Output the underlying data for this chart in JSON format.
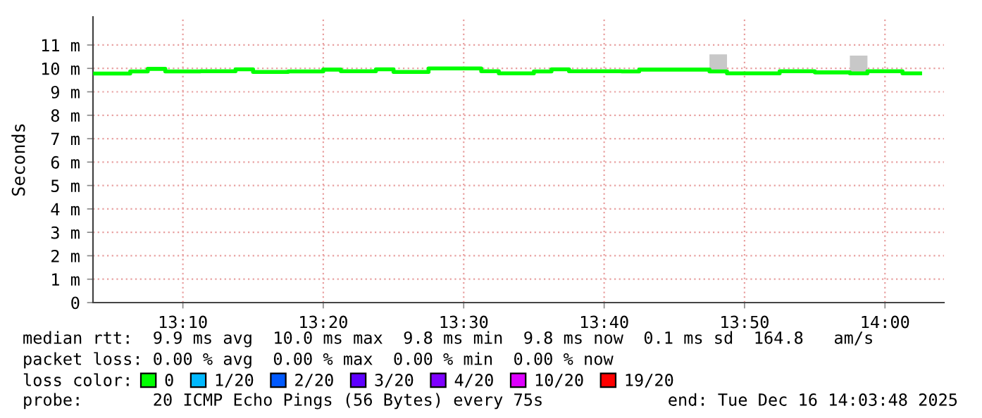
{
  "chart_data": {
    "type": "step",
    "ylabel": "Seconds",
    "x": [
      13.0625,
      13.1042,
      13.125,
      13.1458,
      13.1875,
      13.2292,
      13.25,
      13.2917,
      13.3333,
      13.3542,
      13.3958,
      13.4167,
      13.4583,
      13.5208,
      13.5417,
      13.5833,
      13.6042,
      13.625,
      13.6875,
      13.7083,
      13.7917,
      13.8125,
      13.875,
      13.9167,
      13.9583,
      13.9792,
      14.0208,
      14.0417
    ],
    "series": [
      {
        "name": "0",
        "color": "#00ff00",
        "values": [
          9.78,
          9.87,
          9.98,
          9.87,
          9.88,
          9.96,
          9.85,
          9.87,
          9.95,
          9.88,
          9.96,
          9.85,
          10.0,
          9.88,
          9.79,
          9.87,
          9.96,
          9.88,
          9.87,
          9.95,
          9.87,
          9.79,
          9.88,
          9.83,
          9.79,
          9.88,
          9.79,
          9.79
        ],
        "lower": [
          9.73,
          9.82,
          9.93,
          9.82,
          9.83,
          9.91,
          9.8,
          9.82,
          9.9,
          9.83,
          9.91,
          9.8,
          9.95,
          9.83,
          9.74,
          9.82,
          9.91,
          9.83,
          9.82,
          9.9,
          9.82,
          9.74,
          9.83,
          9.78,
          9.74,
          9.83,
          9.74,
          9.74
        ],
        "upper": [
          9.83,
          9.92,
          10.03,
          9.92,
          9.93,
          10.01,
          9.9,
          9.92,
          10.0,
          9.93,
          10.01,
          9.9,
          10.05,
          9.93,
          9.84,
          9.92,
          10.01,
          9.93,
          9.92,
          10.0,
          10.6,
          9.84,
          9.93,
          9.88,
          10.55,
          9.93,
          9.84,
          9.84
        ]
      },
      {
        "name": "1/20",
        "color": "#00b8ff",
        "values": [
          null,
          null,
          null,
          null,
          null,
          null,
          null,
          null,
          null,
          null,
          null,
          null,
          null,
          null,
          null,
          null,
          null,
          null,
          null,
          null,
          null,
          null,
          null,
          null,
          null,
          null,
          null,
          null
        ]
      },
      {
        "name": "2/20",
        "color": "#0059ff",
        "values": [
          null,
          null,
          null,
          null,
          null,
          null,
          null,
          null,
          null,
          null,
          null,
          null,
          null,
          null,
          null,
          null,
          null,
          null,
          null,
          null,
          null,
          null,
          null,
          null,
          null,
          null,
          null,
          null
        ]
      },
      {
        "name": "3/20",
        "color": "#5e00ff",
        "values": [
          null,
          null,
          null,
          null,
          null,
          null,
          null,
          null,
          null,
          null,
          null,
          null,
          null,
          null,
          null,
          null,
          null,
          null,
          null,
          null,
          null,
          null,
          null,
          null,
          null,
          null,
          null,
          null
        ]
      },
      {
        "name": "4/20",
        "color": "#7e00ff",
        "values": [
          null,
          null,
          null,
          null,
          null,
          null,
          null,
          null,
          null,
          null,
          null,
          null,
          null,
          null,
          null,
          null,
          null,
          null,
          null,
          null,
          null,
          null,
          null,
          null,
          null,
          null,
          null,
          null
        ]
      },
      {
        "name": "10/20",
        "color": "#dd00ff",
        "values": [
          null,
          null,
          null,
          null,
          null,
          null,
          null,
          null,
          null,
          null,
          null,
          null,
          null,
          null,
          null,
          null,
          null,
          null,
          null,
          null,
          null,
          null,
          null,
          null,
          null,
          null,
          null,
          null
        ]
      },
      {
        "name": "19/20",
        "color": "#ff0000",
        "values": [
          null,
          null,
          null,
          null,
          null,
          null,
          null,
          null,
          null,
          null,
          null,
          null,
          null,
          null,
          null,
          null,
          null,
          null,
          null,
          null,
          null,
          null,
          null,
          null,
          null,
          null,
          null,
          null
        ]
      }
    ],
    "legend_title": "loss color:",
    "legend": "bottom",
    "grid": true,
    "xlim": [
      13.06,
      14.07
    ],
    "xticks": [
      {
        "value": 13.1667,
        "label": "13:10"
      },
      {
        "value": 13.3333,
        "label": "13:20"
      },
      {
        "value": 13.5,
        "label": "13:30"
      },
      {
        "value": 13.6667,
        "label": "13:40"
      },
      {
        "value": 13.8333,
        "label": "13:50"
      },
      {
        "value": 14.0,
        "label": "14:00"
      }
    ],
    "ylim": [
      0,
      12.2
    ],
    "yticks": [
      0,
      {
        "value": 1,
        "label": "1 m"
      },
      {
        "value": 2,
        "label": "2 m"
      },
      {
        "value": 3,
        "label": "3 m"
      },
      {
        "value": 4,
        "label": "4 m"
      },
      {
        "value": 5,
        "label": "5 m"
      },
      {
        "value": 6,
        "label": "6 m"
      },
      {
        "value": 7,
        "label": "7 m"
      },
      {
        "value": 8,
        "label": "8 m"
      },
      {
        "value": 9,
        "label": "9 m"
      },
      {
        "value": 10,
        "label": "10 m"
      },
      {
        "value": 11,
        "label": "11 m"
      }
    ],
    "annotations": [
      "median rtt:  9.9 ms avg  10.0 ms max  9.8 ms min  9.8 ms now  0.1 ms sd  164.8   am/s",
      "packet loss: 0.00 % avg  0.00 % max  0.00 % min  0.00 % now",
      "probe:       20 ICMP Echo Pings (56 Bytes) every 75s",
      "end: Tue Dec 16 14:03:48 2025"
    ]
  }
}
